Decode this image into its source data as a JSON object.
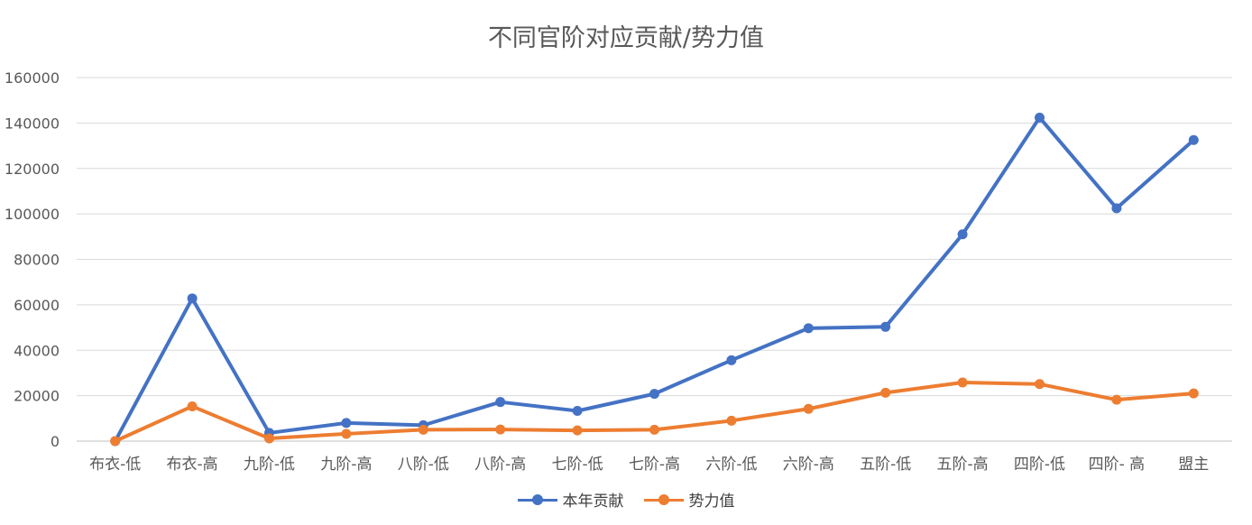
{
  "chart_data": {
    "type": "line",
    "title": "不同官阶对应贡献/势力值",
    "categories": [
      "布衣-低",
      "布衣-高",
      "九阶-低",
      "九阶-高",
      "八阶-低",
      "八阶-高",
      "七阶-低",
      "七阶-高",
      "六阶-低",
      "六阶-高",
      "五阶-低",
      "五阶-高",
      "四阶-低",
      "四阶- 高",
      "盟主"
    ],
    "series": [
      {
        "name": "本年贡献",
        "color": "#4472C4",
        "values": [
          0,
          62800,
          3600,
          8000,
          7000,
          17200,
          13300,
          20800,
          35600,
          49700,
          50300,
          91000,
          142400,
          102500,
          132500
        ]
      },
      {
        "name": "势力值",
        "color": "#ED7D31",
        "values": [
          0,
          15300,
          1200,
          3200,
          5000,
          5100,
          4700,
          5000,
          9000,
          14200,
          21300,
          25800,
          25100,
          18200,
          21000
        ]
      }
    ],
    "ylim": [
      0,
      160000
    ],
    "yticks": [
      0,
      20000,
      40000,
      60000,
      80000,
      100000,
      120000,
      140000,
      160000
    ],
    "grid": true,
    "legend": "bottom"
  }
}
